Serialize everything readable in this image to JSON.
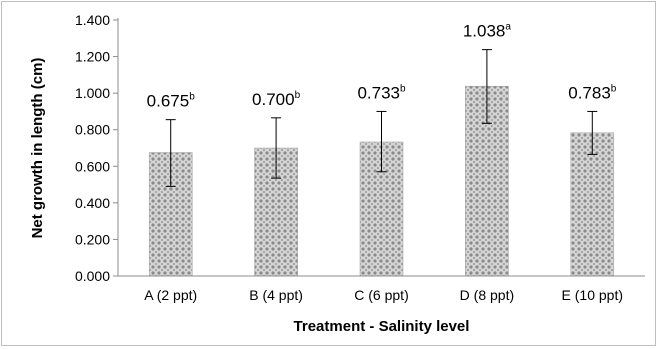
{
  "chart_data": {
    "type": "bar",
    "title": "",
    "xlabel": "Treatment - Salinity level",
    "ylabel": "Net growth in length (cm)",
    "categories": [
      "A (2 ppt)",
      "B (4 ppt)",
      "C (6 ppt)",
      "D (8 ppt)",
      "E (10 ppt)"
    ],
    "values": [
      0.675,
      0.7,
      0.733,
      1.038,
      0.783
    ],
    "error_bars": [
      {
        "low": 0.49,
        "high": 0.855
      },
      {
        "low": 0.535,
        "high": 0.865
      },
      {
        "low": 0.57,
        "high": 0.9
      },
      {
        "low": 0.835,
        "high": 1.238
      },
      {
        "low": 0.665,
        "high": 0.9
      }
    ],
    "data_labels": [
      "0.675",
      "0.700",
      "0.733",
      "1.038",
      "0.783"
    ],
    "significance_letters": [
      "b",
      "b",
      "b",
      "a",
      "b"
    ],
    "ylim": [
      0,
      1.4
    ],
    "yticks": [
      "0.000",
      "0.200",
      "0.400",
      "0.600",
      "0.800",
      "1.000",
      "1.200",
      "1.400"
    ],
    "ytick_values": [
      0,
      0.2,
      0.4,
      0.6,
      0.8,
      1.0,
      1.2,
      1.4
    ],
    "grid": false,
    "legend": "none",
    "bar_fill": "#c8c8c8",
    "bar_pattern_color": "#8a8a8a",
    "axis_color": "#8c8c8c"
  }
}
